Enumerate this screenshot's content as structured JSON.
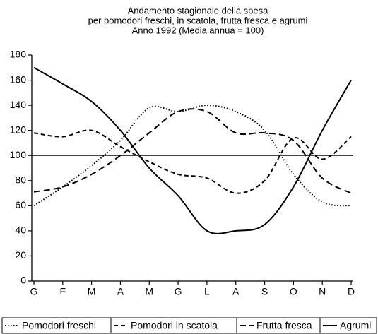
{
  "chart_data": {
    "type": "line",
    "title": "Andamento stagionale della spesa",
    "subtitle": [
      "per pomodori freschi, in scatola, frutta fresca e agrumi",
      "Anno 1992 (Media annua = 100)"
    ],
    "categories": [
      "G",
      "F",
      "M",
      "A",
      "M",
      "G",
      "L",
      "A",
      "S",
      "O",
      "N",
      "D"
    ],
    "ylim": [
      0,
      180
    ],
    "yticks": [
      0,
      20,
      40,
      60,
      80,
      100,
      120,
      140,
      160,
      180
    ],
    "reference_line": 100,
    "series": [
      {
        "name": "Pomodori freschi",
        "color": "#000",
        "style": "dotted",
        "values": [
          60,
          75,
          92,
          112,
          138,
          135,
          140,
          135,
          120,
          85,
          63,
          60
        ]
      },
      {
        "name": "Pomodori in scatola",
        "color": "#000",
        "style": "dashed",
        "values": [
          118,
          115,
          120,
          107,
          95,
          85,
          82,
          70,
          80,
          114,
          97,
          115
        ]
      },
      {
        "name": "Frutta fresca",
        "color": "#000",
        "style": "long-dashed",
        "values": [
          71,
          75,
          85,
          100,
          118,
          135,
          135,
          118,
          118,
          112,
          82,
          70
        ]
      },
      {
        "name": "Agrumi",
        "color": "#000",
        "style": "solid",
        "values": [
          170,
          157,
          143,
          120,
          90,
          68,
          40,
          40,
          45,
          75,
          120,
          160
        ]
      }
    ]
  }
}
